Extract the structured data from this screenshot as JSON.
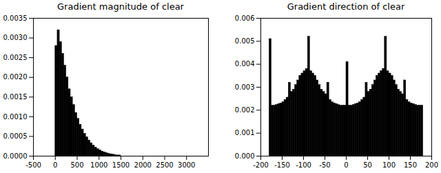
{
  "chart_data": [
    {
      "type": "histogram",
      "title": "Gradient magnitude of clear",
      "color": "#000000",
      "bins": [
        0,
        50,
        100,
        150,
        200,
        250,
        300,
        350,
        400,
        450,
        500,
        550,
        600,
        650,
        700,
        750,
        800,
        850,
        900,
        950,
        1000,
        1050,
        1100,
        1150,
        1200,
        1250,
        1300,
        1350,
        1400,
        1450,
        1500
      ],
      "values": [
        0.0028,
        0.0032,
        0.0029,
        0.0026,
        0.0023,
        0.002,
        0.0017,
        0.0015,
        0.0013,
        0.0011,
        0.00095,
        0.0008,
        0.00068,
        0.00057,
        0.00048,
        0.0004,
        0.00033,
        0.00027,
        0.00022,
        0.00018,
        0.00015,
        0.00012,
        0.0001,
        8e-05,
        6e-05,
        5e-05,
        4e-05,
        3e-05,
        2e-05,
        2e-05
      ],
      "xlim": [
        -500,
        3500
      ],
      "xticks": [
        -500,
        0,
        500,
        1000,
        1500,
        2000,
        2500,
        3000
      ],
      "ylim": [
        0,
        0.0035
      ],
      "yticks": [
        {
          "value": 0,
          "label": "0.0000"
        },
        {
          "value": 0.0005,
          "label": "0.0005"
        },
        {
          "value": 0.001,
          "label": "0.0010"
        },
        {
          "value": 0.0015,
          "label": "0.0015"
        },
        {
          "value": 0.002,
          "label": "0.0020"
        },
        {
          "value": 0.0025,
          "label": "0.0025"
        },
        {
          "value": 0.003,
          "label": "0.0030"
        },
        {
          "value": 0.0035,
          "label": "0.0035"
        }
      ]
    },
    {
      "type": "histogram",
      "title": "Gradient direction of clear",
      "color": "#000000",
      "bins": [
        -180,
        -175,
        -170,
        -165,
        -160,
        -155,
        -150,
        -145,
        -140,
        -135,
        -130,
        -125,
        -120,
        -115,
        -110,
        -105,
        -100,
        -95,
        -90,
        -85,
        -80,
        -75,
        -70,
        -65,
        -60,
        -55,
        -50,
        -45,
        -40,
        -35,
        -30,
        -25,
        -20,
        -15,
        -10,
        -5,
        0,
        5,
        10,
        15,
        20,
        25,
        30,
        35,
        40,
        45,
        50,
        55,
        60,
        65,
        70,
        75,
        80,
        85,
        90,
        95,
        100,
        105,
        110,
        115,
        120,
        125,
        130,
        135,
        140,
        145,
        150,
        155,
        160,
        165,
        170,
        175,
        180
      ],
      "values": [
        0.0051,
        0.0022,
        0.0022,
        0.00223,
        0.00227,
        0.0023,
        0.00235,
        0.00245,
        0.00255,
        0.0032,
        0.0028,
        0.0029,
        0.0031,
        0.0033,
        0.0035,
        0.0036,
        0.0037,
        0.0038,
        0.0052,
        0.0037,
        0.0036,
        0.0035,
        0.0033,
        0.0031,
        0.0029,
        0.0028,
        0.0027,
        0.0032,
        0.00245,
        0.00235,
        0.0023,
        0.00227,
        0.00223,
        0.0022,
        0.0022,
        0.0022,
        0.0041,
        0.0022,
        0.0022,
        0.00223,
        0.00227,
        0.0023,
        0.00235,
        0.00245,
        0.00255,
        0.0032,
        0.0028,
        0.0029,
        0.0031,
        0.0033,
        0.0035,
        0.0036,
        0.0037,
        0.0038,
        0.0052,
        0.0037,
        0.0036,
        0.0035,
        0.0033,
        0.0031,
        0.0029,
        0.0028,
        0.0027,
        0.0033,
        0.00245,
        0.00235,
        0.0023,
        0.00227,
        0.00223,
        0.0022,
        0.0022,
        0.0022
      ],
      "xlim": [
        -200,
        200
      ],
      "xticks": [
        -200,
        -150,
        -100,
        -50,
        0,
        50,
        100,
        150,
        200
      ],
      "ylim": [
        0,
        0.006
      ],
      "yticks": [
        {
          "value": 0,
          "label": "0.000"
        },
        {
          "value": 0.001,
          "label": "0.001"
        },
        {
          "value": 0.002,
          "label": "0.002"
        },
        {
          "value": 0.003,
          "label": "0.003"
        },
        {
          "value": 0.004,
          "label": "0.004"
        },
        {
          "value": 0.005,
          "label": "0.005"
        },
        {
          "value": 0.006,
          "label": "0.006"
        }
      ]
    }
  ]
}
